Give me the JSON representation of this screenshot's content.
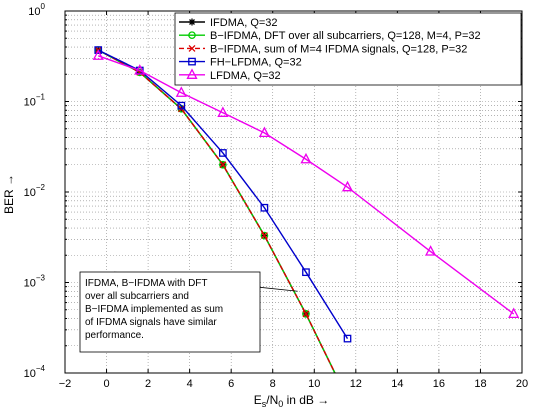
{
  "chart_data": {
    "type": "line",
    "x_scale": "linear",
    "y_scale": "log",
    "xlim": [
      -2,
      20
    ],
    "ylim": [
      0.0001,
      1
    ],
    "x_ticks": [
      -2,
      0,
      2,
      4,
      6,
      8,
      10,
      12,
      14,
      16,
      18,
      20
    ],
    "x_tick_labels": [
      "−2",
      "0",
      "2",
      "4",
      "6",
      "8",
      "10",
      "12",
      "14",
      "16",
      "18",
      "20"
    ],
    "y_ticks": [
      0.0001,
      0.001,
      0.01,
      0.1,
      1
    ],
    "y_tick_labels": [
      {
        "base": "10",
        "exp": "−4"
      },
      {
        "base": "10",
        "exp": "−3"
      },
      {
        "base": "10",
        "exp": "−2"
      },
      {
        "base": "10",
        "exp": "−1"
      },
      {
        "base": "10",
        "exp": "0"
      }
    ],
    "xlabel": {
      "e": "E",
      "s": "s",
      "slash": "/N",
      "zero": "0",
      "rest": " in dB →"
    },
    "ylabel": "BER →",
    "grid": true,
    "legend_position": "top-right",
    "series": [
      {
        "name": "IFDMA, Q=32",
        "color": "#000000",
        "marker": "asterisk",
        "dash": "",
        "x": [
          -0.4,
          1.6,
          3.6,
          5.6,
          7.6,
          9.6,
          11.2
        ],
        "y": [
          0.37,
          0.21,
          0.083,
          0.02,
          0.0033,
          0.00045,
          8e-05
        ]
      },
      {
        "name": "B−IFDMA, DFT over all subcarriers, Q=128, M=4, P=32",
        "color": "#00cc00",
        "marker": "circle",
        "dash": "",
        "x": [
          -0.4,
          1.6,
          3.6,
          5.6,
          7.6,
          9.6,
          11.2
        ],
        "y": [
          0.37,
          0.21,
          0.083,
          0.02,
          0.0033,
          0.00045,
          8e-05
        ]
      },
      {
        "name": "B−IFDMA, sum of M=4 IFDMA signals, Q=128, P=32",
        "color": "#dd0000",
        "marker": "x",
        "dash": "5,3",
        "x": [
          -0.4,
          1.6,
          3.6,
          5.6,
          7.6,
          9.6,
          11.2
        ],
        "y": [
          0.37,
          0.21,
          0.083,
          0.02,
          0.0033,
          0.00045,
          8e-05
        ]
      },
      {
        "name": "FH−LFDMA, Q=32",
        "color": "#0000cc",
        "marker": "square",
        "dash": "",
        "x": [
          -0.4,
          1.6,
          3.6,
          5.6,
          7.6,
          9.6,
          11.6
        ],
        "y": [
          0.37,
          0.22,
          0.09,
          0.027,
          0.0067,
          0.0013,
          0.00024
        ]
      },
      {
        "name": "LFDMA, Q=32",
        "color": "#ee00ee",
        "marker": "triangle",
        "dash": "",
        "x": [
          -0.4,
          1.6,
          3.6,
          5.6,
          7.6,
          9.6,
          11.6,
          15.6,
          19.6
        ],
        "y": [
          0.32,
          0.22,
          0.125,
          0.075,
          0.045,
          0.023,
          0.0113,
          0.0022,
          0.00045
        ]
      }
    ],
    "annotation": {
      "lines": [
        "IFDMA, B−IFDMA with DFT",
        "over all subcarriers and",
        "B−IFDMA implemented as sum",
        "of IFDMA signals have similar",
        "performance."
      ],
      "points_to": {
        "x": 9.2,
        "y": 0.0008
      }
    }
  }
}
